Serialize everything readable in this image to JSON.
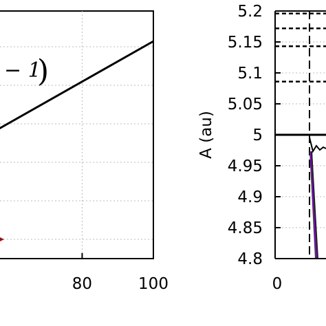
{
  "chart_data": [
    {
      "type": "line",
      "panel": "left",
      "x_ticks": [
        "80",
        "100"
      ],
      "x_tick_values": [
        80,
        100
      ],
      "xlim": [
        55,
        100
      ],
      "annotation": {
        "text": "− 1",
        "close_paren": ")"
      },
      "series": [
        {
          "x": [
            55,
            100
          ],
          "y": [
            0.0,
            1.0
          ],
          "color": "#000000"
        }
      ],
      "marker": {
        "color": "#8b1a1a"
      },
      "grid": true
    },
    {
      "type": "line",
      "panel": "right",
      "ylabel": "A (au)",
      "y_ticks": [
        "4.8",
        "4.85",
        "4.9",
        "4.95",
        "5",
        "5.05",
        "5.1",
        "5.15",
        "5.2"
      ],
      "y_tick_values": [
        4.8,
        4.85,
        4.9,
        4.95,
        5.0,
        5.05,
        5.1,
        5.15,
        5.2
      ],
      "ylim": [
        4.8,
        5.2
      ],
      "x_ticks": [
        "0"
      ],
      "x_tick_values": [
        0
      ],
      "dashed_levels": [
        5.196,
        5.172,
        5.143,
        5.086
      ],
      "solid_level": 5.0,
      "grid": true
    }
  ]
}
